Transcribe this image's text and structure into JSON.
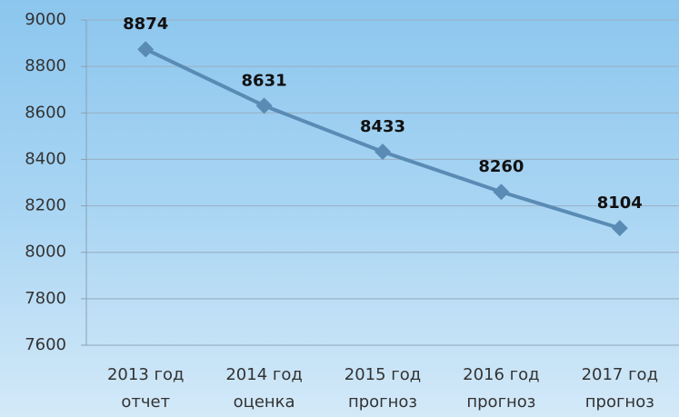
{
  "chart_data": {
    "type": "line",
    "categories": [
      "2013 год\nотчет",
      "2014 год\nоценка",
      "2015 год\nпрогноз",
      "2016 год\nпрогноз",
      "2017 год\nпрогноз"
    ],
    "values": [
      8874,
      8631,
      8433,
      8260,
      8104
    ],
    "color": "#5a8bb5",
    "ylim": [
      7600,
      9000
    ],
    "yticks": [
      7600,
      7800,
      8000,
      8200,
      8400,
      8600,
      8800,
      9000
    ],
    "grid": true
  }
}
